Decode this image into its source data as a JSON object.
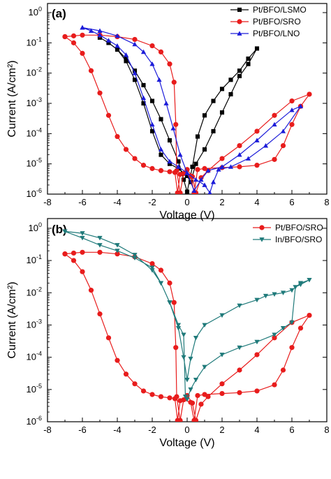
{
  "chart_data": [
    {
      "panel": "(a)",
      "type": "line",
      "xlabel": "Voltage (V)",
      "ylabel": "Current (A/cm²)",
      "xlim": [
        -8,
        8
      ],
      "ylim": [
        1e-06,
        2
      ],
      "yscale": "log",
      "x_ticks": [
        -8,
        -6,
        -4,
        -2,
        0,
        2,
        4,
        6,
        8
      ],
      "y_ticks": [
        1e-06,
        1e-05,
        0.0001,
        0.001,
        0.01,
        0.1,
        1
      ],
      "y_tick_labels": [
        {
          "base": "10",
          "exp": "-6"
        },
        {
          "base": "10",
          "exp": "-5"
        },
        {
          "base": "10",
          "exp": "-4"
        },
        {
          "base": "10",
          "exp": "-3"
        },
        {
          "base": "10",
          "exp": "-2"
        },
        {
          "base": "10",
          "exp": "-1"
        },
        {
          "base": "10",
          "exp": "0"
        }
      ],
      "legend_position": "top-right",
      "series": [
        {
          "name": "Pt/BFO/LSMO",
          "color": "#000000",
          "marker": "square",
          "points": [
            [
              -5,
              0.15
            ],
            [
              -4.5,
              0.1
            ],
            [
              -4,
              0.06
            ],
            [
              -3.5,
              0.03
            ],
            [
              -3,
              0.012
            ],
            [
              -2.5,
              0.004
            ],
            [
              -2,
              0.0012
            ],
            [
              -1.5,
              0.0003
            ],
            [
              -1,
              6e-05
            ],
            [
              -0.5,
              1.2e-05
            ],
            [
              -0.2,
              3e-06
            ],
            [
              0,
              1.2e-06
            ],
            [
              0.3,
              8e-06
            ],
            [
              0.6,
              8e-05
            ],
            [
              1,
              0.0004
            ],
            [
              1.5,
              0.0012
            ],
            [
              2,
              0.003
            ],
            [
              2.5,
              0.006
            ],
            [
              3,
              0.012
            ],
            [
              3.5,
              0.03
            ],
            [
              4,
              0.065
            ],
            [
              3.5,
              0.02
            ],
            [
              3,
              0.008
            ],
            [
              2.5,
              0.002
            ],
            [
              2,
              0.0005
            ],
            [
              1.5,
              0.00012
            ],
            [
              1,
              3e-05
            ],
            [
              0.5,
              1e-05
            ],
            [
              0.2,
              2.5e-06
            ],
            [
              0,
              4e-06
            ],
            [
              -0.5,
              7e-06
            ],
            [
              -1,
              1e-05
            ],
            [
              -1.5,
              2e-05
            ],
            [
              -2,
              0.00012
            ],
            [
              -2.5,
              0.001
            ],
            [
              -3,
              0.006
            ],
            [
              -3.5,
              0.025
            ],
            [
              -4,
              0.06
            ],
            [
              -4.5,
              0.1
            ],
            [
              -5,
              0.15
            ]
          ]
        },
        {
          "name": "Pt/BFO/SRO",
          "color": "#e81c1c",
          "marker": "circle",
          "points": [
            [
              -7,
              0.16
            ],
            [
              -6.5,
              0.1
            ],
            [
              -6,
              0.045
            ],
            [
              -5.5,
              0.012
            ],
            [
              -5,
              0.0022
            ],
            [
              -4.5,
              0.0004
            ],
            [
              -4,
              8e-05
            ],
            [
              -3.5,
              3e-05
            ],
            [
              -3,
              1.5e-05
            ],
            [
              -2.5,
              9e-06
            ],
            [
              -2,
              7e-06
            ],
            [
              -1.5,
              6e-06
            ],
            [
              -1,
              5.5e-06
            ],
            [
              -0.7,
              5.2e-06
            ],
            [
              -0.55,
              1.1e-06
            ],
            [
              -0.4,
              4.5e-06
            ],
            [
              0,
              6.5e-06
            ],
            [
              0.3,
              3.8e-06
            ],
            [
              0.5,
              1.1e-06
            ],
            [
              0.8,
              3.5e-06
            ],
            [
              1.2,
              6e-06
            ],
            [
              2,
              1.5e-05
            ],
            [
              3,
              4e-05
            ],
            [
              4,
              0.00012
            ],
            [
              5,
              0.0004
            ],
            [
              6,
              0.0012
            ],
            [
              7,
              0.002
            ],
            [
              6.5,
              0.0008
            ],
            [
              6,
              0.0002
            ],
            [
              5.5,
              4e-05
            ],
            [
              5,
              1.4e-05
            ],
            [
              4,
              9e-06
            ],
            [
              3,
              8e-06
            ],
            [
              2,
              7.5e-06
            ],
            [
              1,
              7e-06
            ],
            [
              0.6,
              6.5e-06
            ],
            [
              0.4,
              1.1e-06
            ],
            [
              0.2,
              4e-06
            ],
            [
              -0.2,
              4.8e-06
            ],
            [
              -0.4,
              1.1e-06
            ],
            [
              -0.6,
              6e-06
            ],
            [
              -0.65,
              0.0002
            ],
            [
              -0.75,
              0.005
            ],
            [
              -1,
              0.02
            ],
            [
              -1.5,
              0.05
            ],
            [
              -2,
              0.08
            ],
            [
              -3,
              0.13
            ],
            [
              -4,
              0.16
            ],
            [
              -5,
              0.18
            ],
            [
              -6,
              0.18
            ],
            [
              -6.5,
              0.17
            ],
            [
              -7,
              0.16
            ]
          ]
        },
        {
          "name": "Pt/BFO/LNO",
          "color": "#1c1cd9",
          "marker": "triangle",
          "points": [
            [
              -6,
              0.32
            ],
            [
              -5.5,
              0.25
            ],
            [
              -5,
              0.18
            ],
            [
              -4.5,
              0.12
            ],
            [
              -4,
              0.08
            ],
            [
              -3.5,
              0.04
            ],
            [
              -3,
              0.01
            ],
            [
              -2.5,
              0.0015
            ],
            [
              -2,
              0.0002
            ],
            [
              -1.5,
              3e-05
            ],
            [
              -1,
              1.2e-05
            ],
            [
              -0.5,
              8e-06
            ],
            [
              0,
              5e-06
            ],
            [
              0.4,
              1.3e-06
            ],
            [
              0.8,
              3e-06
            ],
            [
              1.2,
              6e-06
            ],
            [
              2,
              8e-06
            ],
            [
              3,
              2e-05
            ],
            [
              4,
              6e-05
            ],
            [
              5,
              0.0002
            ],
            [
              6,
              0.0006
            ],
            [
              6.5,
              0.0008
            ],
            [
              5.5,
              0.00012
            ],
            [
              4.5,
              4e-05
            ],
            [
              3.5,
              1.5e-05
            ],
            [
              2.5,
              8e-06
            ],
            [
              1.8,
              6.5e-06
            ],
            [
              1.5,
              2.5e-06
            ],
            [
              1.3,
              1.1e-06
            ],
            [
              1,
              2e-06
            ],
            [
              0.5,
              3e-06
            ],
            [
              0,
              5e-06
            ],
            [
              -0.4,
              2e-05
            ],
            [
              -0.8,
              0.00015
            ],
            [
              -1.2,
              0.001
            ],
            [
              -1.6,
              0.006
            ],
            [
              -2,
              0.02
            ],
            [
              -2.5,
              0.05
            ],
            [
              -3,
              0.09
            ],
            [
              -4,
              0.17
            ],
            [
              -5,
              0.25
            ],
            [
              -6,
              0.32
            ]
          ]
        }
      ]
    },
    {
      "panel": "(b)",
      "type": "line",
      "xlabel": "Voltage (V)",
      "ylabel": "Current (A/cm²)",
      "xlim": [
        -8,
        8
      ],
      "ylim": [
        1e-06,
        2
      ],
      "yscale": "log",
      "x_ticks": [
        -8,
        -6,
        -4,
        -2,
        0,
        2,
        4,
        6,
        8
      ],
      "y_ticks": [
        1e-06,
        1e-05,
        0.0001,
        0.001,
        0.01,
        0.1,
        1
      ],
      "y_tick_labels": [
        {
          "base": "10",
          "exp": "-6"
        },
        {
          "base": "10",
          "exp": "-5"
        },
        {
          "base": "10",
          "exp": "-4"
        },
        {
          "base": "10",
          "exp": "-3"
        },
        {
          "base": "10",
          "exp": "-2"
        },
        {
          "base": "10",
          "exp": "-1"
        },
        {
          "base": "10",
          "exp": "0"
        }
      ],
      "legend_position": "top-right",
      "series": [
        {
          "name": "Pt/BFO/SRO",
          "color": "#e81c1c",
          "marker": "circle",
          "points": [
            [
              -7,
              0.16
            ],
            [
              -6.5,
              0.1
            ],
            [
              -6,
              0.045
            ],
            [
              -5.5,
              0.012
            ],
            [
              -5,
              0.0022
            ],
            [
              -4.5,
              0.0004
            ],
            [
              -4,
              8e-05
            ],
            [
              -3.5,
              3e-05
            ],
            [
              -3,
              1.5e-05
            ],
            [
              -2.5,
              9e-06
            ],
            [
              -2,
              7e-06
            ],
            [
              -1.5,
              6e-06
            ],
            [
              -1,
              5.5e-06
            ],
            [
              -0.7,
              5.2e-06
            ],
            [
              -0.55,
              1.1e-06
            ],
            [
              -0.4,
              4.5e-06
            ],
            [
              0,
              6.5e-06
            ],
            [
              0.3,
              3.8e-06
            ],
            [
              0.5,
              1.1e-06
            ],
            [
              0.8,
              3.5e-06
            ],
            [
              1.2,
              6e-06
            ],
            [
              2,
              1.5e-05
            ],
            [
              3,
              4e-05
            ],
            [
              4,
              0.00012
            ],
            [
              5,
              0.0004
            ],
            [
              6,
              0.0012
            ],
            [
              7,
              0.002
            ],
            [
              6.5,
              0.0008
            ],
            [
              6,
              0.0002
            ],
            [
              5.5,
              4e-05
            ],
            [
              5,
              1.4e-05
            ],
            [
              4,
              9e-06
            ],
            [
              3,
              8e-06
            ],
            [
              2,
              7.5e-06
            ],
            [
              1,
              7e-06
            ],
            [
              0.6,
              6.5e-06
            ],
            [
              0.4,
              1.1e-06
            ],
            [
              0.2,
              4e-06
            ],
            [
              -0.2,
              4.8e-06
            ],
            [
              -0.4,
              1.1e-06
            ],
            [
              -0.6,
              6e-06
            ],
            [
              -0.65,
              0.0002
            ],
            [
              -0.75,
              0.005
            ],
            [
              -1,
              0.02
            ],
            [
              -1.5,
              0.05
            ],
            [
              -2,
              0.08
            ],
            [
              -3,
              0.13
            ],
            [
              -4,
              0.16
            ],
            [
              -5,
              0.18
            ],
            [
              -6,
              0.18
            ],
            [
              -6.5,
              0.17
            ],
            [
              -7,
              0.16
            ]
          ]
        },
        {
          "name": "In/BFO/SRO",
          "color": "#1f7a7a",
          "marker": "triangle-down",
          "points": [
            [
              -7,
              0.8
            ],
            [
              -6,
              0.5
            ],
            [
              -5,
              0.3
            ],
            [
              -4,
              0.2
            ],
            [
              -3,
              0.12
            ],
            [
              -2,
              0.06
            ],
            [
              -1.5,
              0.02
            ],
            [
              -1,
              0.005
            ],
            [
              -0.5,
              0.0008
            ],
            [
              -0.2,
              0.0001
            ],
            [
              0,
              2e-05
            ],
            [
              0.2,
              9e-05
            ],
            [
              0.5,
              0.0004
            ],
            [
              1,
              0.001
            ],
            [
              2,
              0.002
            ],
            [
              3,
              0.004
            ],
            [
              4,
              0.006
            ],
            [
              4.5,
              0.008
            ],
            [
              5,
              0.009
            ],
            [
              5.5,
              0.01
            ],
            [
              6,
              0.012
            ],
            [
              6.5,
              0.02
            ],
            [
              7,
              0.025
            ],
            [
              6.5,
              0.018
            ],
            [
              6.2,
              0.015
            ],
            [
              6,
              0.0012
            ],
            [
              5.5,
              0.0008
            ],
            [
              5,
              0.0005
            ],
            [
              4,
              0.0003
            ],
            [
              3,
              0.0002
            ],
            [
              2,
              0.00012
            ],
            [
              1,
              5e-05
            ],
            [
              0.5,
              2e-05
            ],
            [
              0.2,
              1e-05
            ],
            [
              0,
              5e-06
            ],
            [
              -0.1,
              6e-06
            ],
            [
              -0.2,
              0.0005
            ],
            [
              -0.5,
              0.001
            ],
            [
              -1,
              0.005
            ],
            [
              -1.5,
              0.02
            ],
            [
              -2,
              0.05
            ],
            [
              -3,
              0.15
            ],
            [
              -4,
              0.3
            ],
            [
              -5,
              0.5
            ],
            [
              -6,
              0.7
            ],
            [
              -7,
              0.8
            ]
          ]
        }
      ]
    }
  ]
}
